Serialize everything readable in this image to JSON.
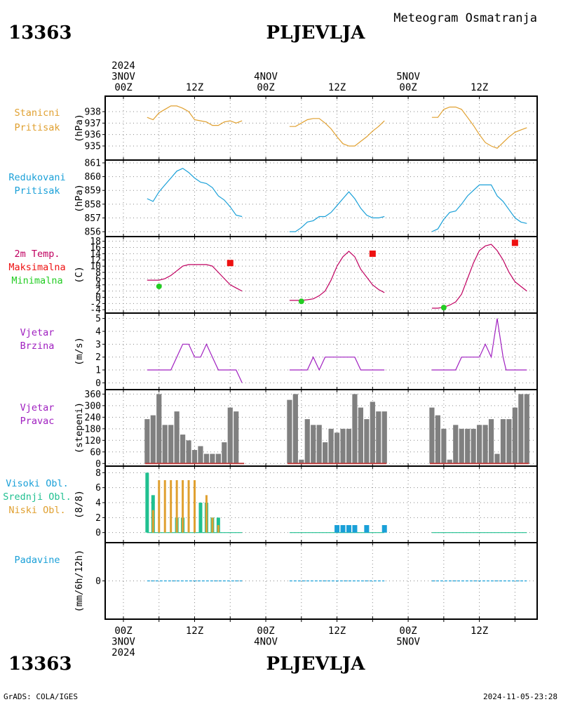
{
  "header": {
    "station_id": "13363",
    "station_name": "PLJEVLJA",
    "subtitle": "Meteogram Osmatranja"
  },
  "footer": {
    "credit": "GrADS: COLA/IGES",
    "timestamp": "2024-11-05-23:28"
  },
  "time_axis": {
    "top_labels": [
      {
        "h": 0,
        "lines": [
          "2024",
          "3NOV",
          "00Z"
        ]
      },
      {
        "h": 12,
        "lines": [
          "12Z"
        ]
      },
      {
        "h": 24,
        "lines": [
          "4NOV",
          "00Z"
        ]
      },
      {
        "h": 36,
        "lines": [
          "12Z"
        ]
      },
      {
        "h": 48,
        "lines": [
          "5NOV",
          "00Z"
        ]
      },
      {
        "h": 60,
        "lines": [
          "12Z"
        ]
      }
    ],
    "bottom_labels": [
      {
        "h": 0,
        "lines": [
          "00Z",
          "3NOV",
          "2024"
        ]
      },
      {
        "h": 12,
        "lines": [
          "12Z"
        ]
      },
      {
        "h": 24,
        "lines": [
          "00Z",
          "4NOV"
        ]
      },
      {
        "h": 36,
        "lines": [
          "12Z"
        ]
      },
      {
        "h": 48,
        "lines": [
          "00Z",
          "5NOV"
        ]
      },
      {
        "h": 60,
        "lines": [
          "12Z"
        ]
      }
    ],
    "grid_hours": [
      0,
      6,
      12,
      18,
      24,
      30,
      36,
      42,
      48,
      54,
      60,
      66
    ]
  },
  "colors": {
    "stanicni": "#e0a030",
    "redukovani": "#1aa0d8",
    "temp": "#c00060",
    "tmax": "#ee1111",
    "tmin": "#22cc22",
    "wind": "#a020c0",
    "dir_bar": "#808080",
    "dir_base": "#c04040",
    "high_cloud": "#1aa0d8",
    "mid_cloud": "#20c090",
    "low_cloud": "#e0a030",
    "precip": "#1aa0d8",
    "grid": "#888888"
  },
  "chart_data": [
    {
      "type": "line",
      "name_lines": [
        "Stanicni",
        "Pritisak"
      ],
      "ylabel": "(hPa)",
      "ylim": [
        934.2,
        938.8
      ],
      "yticks": [
        935,
        936,
        937,
        938
      ],
      "segments": [
        {
          "x": [
            4,
            5,
            6,
            7,
            8,
            9,
            10,
            11,
            12,
            13,
            14,
            15,
            16,
            17,
            18,
            19,
            20
          ],
          "y": [
            937.5,
            937.3,
            937.9,
            938.2,
            938.5,
            938.5,
            938.3,
            938.0,
            937.3,
            937.2,
            937.1,
            936.8,
            936.8,
            937.1,
            937.2,
            937.0,
            937.2
          ]
        },
        {
          "x": [
            28,
            29,
            30,
            31,
            32,
            33,
            34,
            35,
            36,
            37,
            38,
            39,
            40,
            41,
            42,
            43,
            44
          ],
          "y": [
            936.7,
            936.7,
            937.0,
            937.3,
            937.4,
            937.4,
            937.0,
            936.5,
            935.8,
            935.2,
            935.0,
            935.0,
            935.4,
            935.8,
            936.3,
            936.7,
            937.2
          ]
        },
        {
          "x": [
            52,
            53,
            54,
            55,
            56,
            57,
            58,
            59,
            60,
            61,
            62,
            63,
            64,
            65,
            66,
            67,
            68
          ],
          "y": [
            937.5,
            937.5,
            938.2,
            938.4,
            938.4,
            938.2,
            937.5,
            936.8,
            936.0,
            935.3,
            935.0,
            934.8,
            935.3,
            935.8,
            936.2,
            936.4,
            936.6
          ]
        }
      ]
    },
    {
      "type": "line",
      "name_lines": [
        "Redukovani",
        "Pritisak"
      ],
      "ylabel": "(hPa)",
      "ylim": [
        855.9,
        861.0
      ],
      "yticks": [
        856,
        857,
        858,
        859,
        860,
        861
      ],
      "segments": [
        {
          "x": [
            4,
            5,
            6,
            7,
            8,
            9,
            10,
            11,
            12,
            13,
            14,
            15,
            16,
            17,
            18,
            19,
            20
          ],
          "y": [
            858.4,
            858.2,
            858.9,
            859.4,
            859.9,
            860.4,
            860.6,
            860.3,
            859.9,
            859.6,
            859.5,
            859.2,
            858.6,
            858.3,
            857.8,
            857.2,
            857.1
          ]
        },
        {
          "x": [
            28,
            29,
            30,
            31,
            32,
            33,
            34,
            35,
            36,
            37,
            38,
            39,
            40,
            41,
            42,
            43,
            44
          ],
          "y": [
            856.0,
            856.0,
            856.3,
            856.7,
            856.8,
            857.1,
            857.1,
            857.4,
            857.9,
            858.4,
            858.9,
            858.4,
            857.7,
            857.2,
            857.0,
            857.0,
            857.1
          ]
        },
        {
          "x": [
            52,
            53,
            54,
            55,
            56,
            57,
            58,
            59,
            60,
            61,
            62,
            63,
            64,
            65,
            66,
            67,
            68
          ],
          "y": [
            856.0,
            856.2,
            856.9,
            857.4,
            857.5,
            858.0,
            858.6,
            859.0,
            859.4,
            859.4,
            859.4,
            858.6,
            858.2,
            857.6,
            857.0,
            856.7,
            856.6
          ]
        }
      ]
    },
    {
      "type": "line",
      "name_lines": [
        "2m Temp.",
        "Maksimalna",
        "Minimalna"
      ],
      "ylabel": "(C)",
      "ylim": [
        -4.4,
        18.6
      ],
      "yticks": [
        -4,
        -2,
        0,
        2,
        4,
        6,
        8,
        10,
        12,
        14,
        16,
        18
      ],
      "segments": [
        {
          "x": [
            4,
            5,
            6,
            7,
            8,
            9,
            10,
            11,
            12,
            13,
            14,
            15,
            16,
            17,
            18,
            19,
            20
          ],
          "y": [
            5.5,
            5.5,
            5.5,
            6.0,
            7.0,
            8.5,
            10.0,
            10.5,
            10.5,
            10.5,
            10.5,
            10.0,
            8.0,
            6.0,
            4.0,
            3.0,
            2.0
          ]
        },
        {
          "x": [
            28,
            29,
            30,
            31,
            32,
            33,
            34,
            35,
            36,
            37,
            38,
            39,
            40,
            41,
            42,
            43,
            44
          ],
          "y": [
            -1.0,
            -1.0,
            -1.0,
            -0.8,
            -0.5,
            0.5,
            2.0,
            5.5,
            10.0,
            13.0,
            14.8,
            13.0,
            9.0,
            6.5,
            4.0,
            2.5,
            1.5
          ]
        },
        {
          "x": [
            52,
            53,
            54,
            55,
            56,
            57,
            58,
            59,
            60,
            61,
            62,
            63,
            64,
            65,
            66,
            67,
            68
          ],
          "y": [
            -3.5,
            -3.5,
            -3.2,
            -2.5,
            -1.5,
            1.0,
            6.0,
            11.0,
            15.0,
            16.5,
            17.0,
            15.0,
            12.0,
            8.0,
            5.0,
            3.5,
            2.0
          ]
        }
      ],
      "tmax_points": [
        {
          "x": 18,
          "y": 11.0
        },
        {
          "x": 42,
          "y": 14.0
        },
        {
          "x": 66,
          "y": 17.5
        }
      ],
      "tmin_points": [
        {
          "x": 6,
          "y": 3.5
        },
        {
          "x": 30,
          "y": -1.3
        },
        {
          "x": 54,
          "y": -3.3
        }
      ]
    },
    {
      "type": "line",
      "name_lines": [
        "Vjetar",
        "Brzina"
      ],
      "ylabel": "(m/s)",
      "ylim": [
        -0.2,
        5.2
      ],
      "yticks": [
        0,
        1,
        2,
        3,
        4,
        5
      ],
      "segments": [
        {
          "x": [
            4,
            5,
            6,
            7,
            8,
            9,
            10,
            11,
            12,
            13,
            14,
            15,
            16,
            17,
            18,
            19,
            20
          ],
          "y": [
            1,
            1,
            1,
            1,
            1,
            2,
            3,
            3,
            2,
            2,
            3,
            2,
            1,
            1,
            1,
            1,
            0
          ]
        },
        {
          "x": [
            28,
            29,
            30,
            31,
            32,
            33,
            34,
            35,
            36,
            37,
            38,
            39,
            40,
            41,
            42,
            43,
            44
          ],
          "y": [
            1,
            1,
            1,
            1,
            2,
            1,
            2,
            2,
            2,
            2,
            2,
            2,
            1,
            1,
            1,
            1,
            1
          ]
        },
        {
          "x": [
            52,
            53,
            54,
            55,
            56,
            57,
            58,
            59,
            60,
            61,
            62,
            63,
            64,
            64.5,
            65,
            66,
            67,
            68
          ],
          "y": [
            1,
            1,
            1,
            1,
            1,
            2,
            2,
            2,
            2,
            3,
            2,
            5,
            2,
            1,
            1,
            1,
            1,
            1
          ]
        }
      ]
    },
    {
      "type": "bar",
      "name_lines": [
        "Vjetar",
        "Pravac"
      ],
      "ylabel": "(stepeni)",
      "ylim": [
        -10,
        365
      ],
      "yticks": [
        0,
        60,
        120,
        180,
        240,
        300,
        360
      ],
      "groups": [
        {
          "x": [
            4,
            5,
            6,
            7,
            8,
            9,
            10,
            11,
            12,
            13,
            14,
            15,
            16,
            17,
            18,
            19,
            20
          ],
          "values": [
            230,
            250,
            360,
            200,
            200,
            270,
            150,
            120,
            70,
            90,
            50,
            50,
            50,
            110,
            290,
            270,
            0
          ]
        },
        {
          "x": [
            28,
            29,
            30,
            31,
            32,
            33,
            34,
            35,
            36,
            37,
            38,
            39,
            40,
            41,
            42,
            43,
            44
          ],
          "values": [
            330,
            360,
            20,
            230,
            200,
            200,
            110,
            180,
            160,
            180,
            180,
            360,
            290,
            230,
            320,
            270,
            270
          ]
        },
        {
          "x": [
            52,
            53,
            54,
            55,
            56,
            57,
            58,
            59,
            60,
            61,
            62,
            63,
            64,
            65,
            66,
            67,
            68
          ],
          "values": [
            290,
            250,
            180,
            20,
            200,
            180,
            180,
            180,
            200,
            200,
            230,
            50,
            230,
            230,
            290,
            360,
            360
          ]
        }
      ]
    },
    {
      "type": "bar",
      "name_lines": [
        "Visoki Obl.",
        "Srednji Obl.",
        "Niski Obl."
      ],
      "ylabel": "(8/8)",
      "ylim": [
        -0.5,
        8.5
      ],
      "yticks": [
        0,
        2,
        4,
        6,
        8
      ],
      "series": [
        {
          "name": "Visoki Obl.",
          "key": "high_cloud",
          "x": [
            36,
            37,
            38,
            39,
            41,
            44
          ],
          "values": [
            1,
            1,
            1,
            1,
            1,
            1
          ]
        },
        {
          "name": "Srednji Obl.",
          "key": "mid_cloud",
          "x": [
            4,
            5,
            9,
            10,
            13,
            14,
            15,
            16
          ],
          "values": [
            8,
            5,
            2,
            2,
            4,
            4,
            2,
            2
          ]
        },
        {
          "name": "Niski Obl.",
          "key": "low_cloud",
          "x": [
            5,
            6,
            7,
            8,
            9,
            10,
            11,
            12,
            14,
            15,
            16
          ],
          "values": [
            3,
            7,
            7,
            7,
            7,
            7,
            7,
            7,
            5,
            2,
            1
          ]
        }
      ],
      "zero_segments": [
        [
          4,
          20
        ],
        [
          28,
          44
        ],
        [
          52,
          68
        ]
      ]
    },
    {
      "type": "line",
      "name_lines": [
        "Padavine"
      ],
      "ylabel": "(mm/6h/12h)",
      "ylim": [
        -5,
        5
      ],
      "yticks": [
        0
      ],
      "segments": [
        {
          "x": [
            4,
            20
          ],
          "y": [
            0,
            0
          ]
        },
        {
          "x": [
            28,
            44
          ],
          "y": [
            0,
            0
          ]
        },
        {
          "x": [
            52,
            68
          ],
          "y": [
            0,
            0
          ]
        }
      ]
    }
  ]
}
